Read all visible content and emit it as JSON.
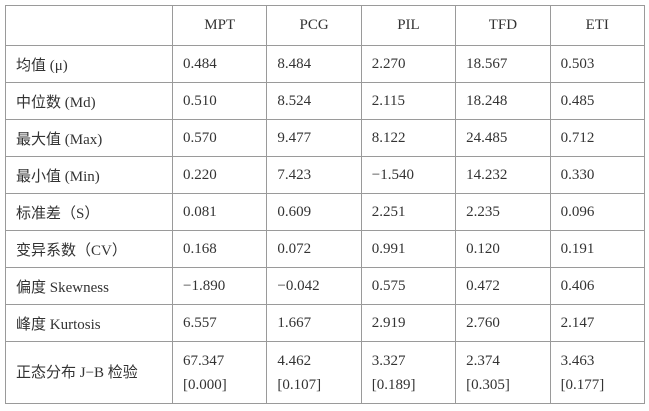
{
  "table": {
    "columns": [
      "MPT",
      "PCG",
      "PIL",
      "TFD",
      "ETI"
    ],
    "rows": [
      {
        "label": "均值 (μ)",
        "cells": [
          "0.484",
          "8.484",
          "2.270",
          "18.567",
          "0.503"
        ]
      },
      {
        "label": "中位数 (Md)",
        "cells": [
          "0.510",
          "8.524",
          "2.115",
          "18.248",
          "0.485"
        ]
      },
      {
        "label": "最大值 (Max)",
        "cells": [
          "0.570",
          "9.477",
          "8.122",
          "24.485",
          "0.712"
        ]
      },
      {
        "label": "最小值 (Min)",
        "cells": [
          "0.220",
          "7.423",
          "−1.540",
          "14.232",
          "0.330"
        ]
      },
      {
        "label": "标准差（S）",
        "cells": [
          "0.081",
          "0.609",
          "2.251",
          "2.235",
          "0.096"
        ]
      },
      {
        "label": "变异系数（CV）",
        "cells": [
          "0.168",
          "0.072",
          "0.991",
          "0.120",
          "0.191"
        ]
      },
      {
        "label": "偏度 Skewness",
        "cells": [
          "−1.890",
          "−0.042",
          "0.575",
          "0.472",
          "0.406"
        ]
      },
      {
        "label": "峰度 Kurtosis",
        "cells": [
          "6.557",
          "1.667",
          "2.919",
          "2.760",
          "2.147"
        ]
      },
      {
        "label": "正态分布 J−B 检验",
        "cells": [
          {
            "value": "67.347",
            "p": "[0.000]"
          },
          {
            "value": "4.462",
            "p": "[0.107]"
          },
          {
            "value": "3.327",
            "p": "[0.189]"
          },
          {
            "value": "2.374",
            "p": "[0.305]"
          },
          {
            "value": "3.463",
            "p": "[0.177]"
          }
        ]
      }
    ]
  }
}
